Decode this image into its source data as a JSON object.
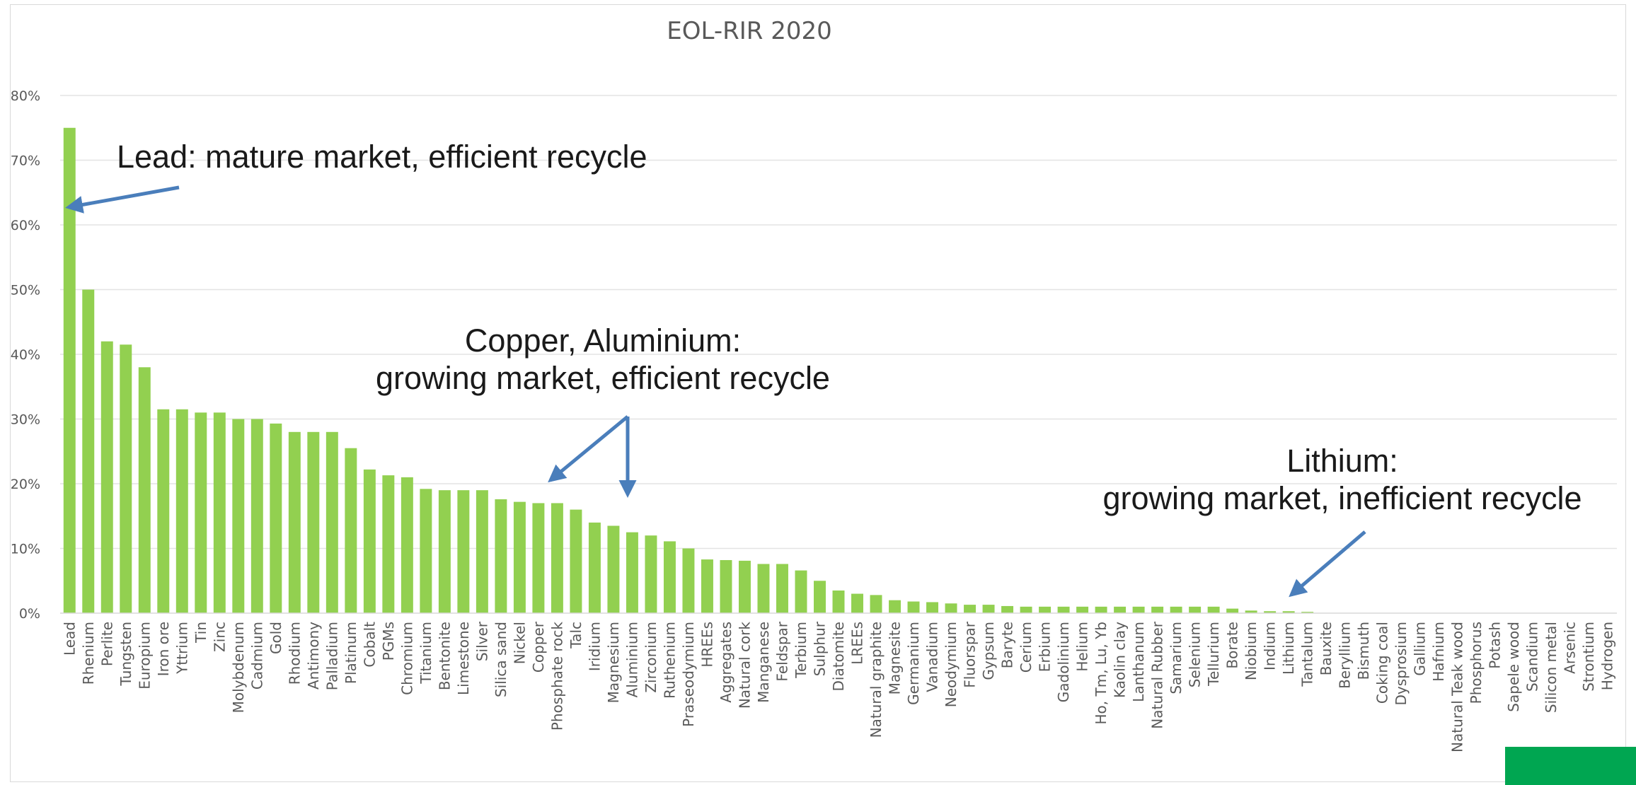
{
  "chart_data": {
    "type": "bar",
    "title": "EOL-RIR 2020",
    "xlabel": "",
    "ylabel": "",
    "ylim": [
      0,
      80
    ],
    "y_ticks": [
      "0%",
      "10%",
      "20%",
      "30%",
      "40%",
      "50%",
      "60%",
      "70%",
      "80%"
    ],
    "grid": true,
    "bar_color": "#92d050",
    "categories": [
      "Lead",
      "Rhenium",
      "Perlite",
      "Tungsten",
      "Europium",
      "Iron ore",
      "Yttrium",
      "Tin",
      "Zinc",
      "Molybdenum",
      "Cadmium",
      "Gold",
      "Rhodium",
      "Antimony",
      "Palladium",
      "Platinum",
      "Cobalt",
      "PGMs",
      "Chromium",
      "Titanium",
      "Bentonite",
      "Limestone",
      "Silver",
      "Silica sand",
      "Nickel",
      "Copper",
      "Phosphate rock",
      "Talc",
      "Iridium",
      "Magnesium",
      "Aluminium",
      "Zirconium",
      "Ruthenium",
      "Praseodymium",
      "HREEs",
      "Aggregates",
      "Natural cork",
      "Manganese",
      "Feldspar",
      "Terbium",
      "Sulphur",
      "Diatomite",
      "LREEs",
      "Natural graphite",
      "Magnesite",
      "Germanium",
      "Vanadium",
      "Neodymium",
      "Fluorspar",
      "Gypsum",
      "Baryte",
      "Cerium",
      "Erbium",
      "Gadolinium",
      "Helium",
      "Ho, Tm, Lu, Yb",
      "Kaolin clay",
      "Lanthanum",
      "Natural Rubber",
      "Samarium",
      "Selenium",
      "Tellurium",
      "Borate",
      "Niobium",
      "Indium",
      "Lithium",
      "Tantalum",
      "Bauxite",
      "Beryllium",
      "Bismuth",
      "Coking coal",
      "Dysprosium",
      "Gallium",
      "Hafnium",
      "Natural Teak wood",
      "Phosphorus",
      "Potash",
      "Sapele wood",
      "Scandium",
      "Silicon metal",
      "Arsenic",
      "Strontium",
      "Hydrogen"
    ],
    "values": [
      75,
      50,
      42,
      41.5,
      38,
      31.5,
      31.5,
      31,
      31,
      30,
      30,
      29.3,
      28,
      28,
      28,
      25.5,
      22.2,
      21.3,
      21,
      19.2,
      19,
      19,
      19,
      17.6,
      17.2,
      17,
      17,
      16,
      14,
      13.5,
      12.5,
      12,
      11.1,
      10,
      8.3,
      8.2,
      8.1,
      7.6,
      7.6,
      6.6,
      5,
      3.5,
      3,
      2.8,
      2,
      1.8,
      1.7,
      1.5,
      1.3,
      1.3,
      1.1,
      1,
      1,
      1,
      1,
      1,
      1,
      1,
      1,
      1,
      1,
      1,
      0.7,
      0.4,
      0.3,
      0.3,
      0.2,
      0,
      0,
      0,
      0,
      0,
      0,
      0,
      0,
      0,
      0,
      0,
      0,
      0,
      0,
      0,
      0
    ],
    "annotations": [
      {
        "lines": [
          "Lead: mature market, efficient recycle"
        ],
        "target": "Lead"
      },
      {
        "lines": [
          "Copper, Aluminium:",
          "growing market, efficient recycle"
        ],
        "target": "Copper, Aluminium"
      },
      {
        "lines": [
          "Lithium:",
          "growing market, inefficient recycle"
        ],
        "target": "Lithium"
      }
    ],
    "arrow_color": "#4a7ebb"
  }
}
